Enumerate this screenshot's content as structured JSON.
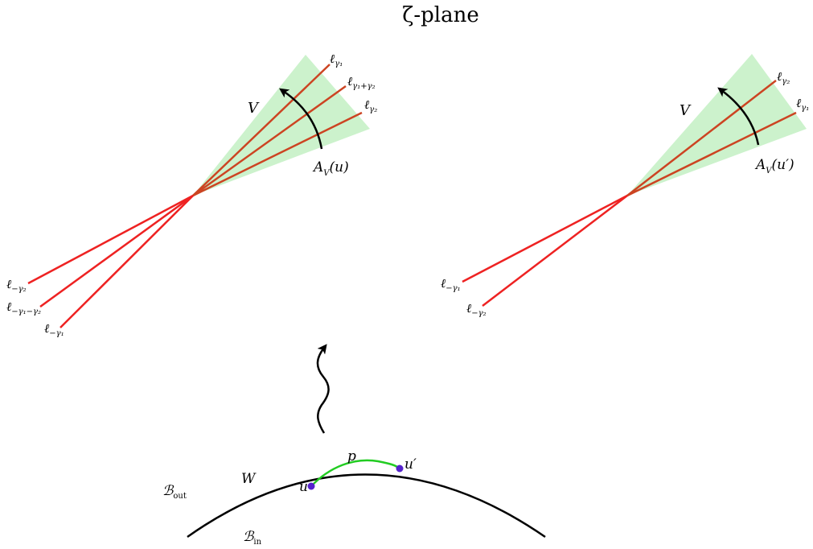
{
  "title": "ζ-plane",
  "left_panel": {
    "region_label": "V",
    "arc_label": "A",
    "arc_label_sub": "V",
    "arc_label_arg": "(u)",
    "rays": [
      {
        "label": "ℓ",
        "sub": "γ₁"
      },
      {
        "label": "ℓ",
        "sub": "γ₁+γ₂"
      },
      {
        "label": "ℓ",
        "sub": "γ₂"
      },
      {
        "label": "ℓ",
        "sub": "−γ₂"
      },
      {
        "label": "ℓ",
        "sub": "−γ₁−γ₂"
      },
      {
        "label": "ℓ",
        "sub": "−γ₁"
      }
    ]
  },
  "right_panel": {
    "region_label": "V",
    "arc_label": "A",
    "arc_label_sub": "V",
    "arc_label_arg": "(u′)",
    "rays": [
      {
        "label": "ℓ",
        "sub": "γ₂"
      },
      {
        "label": "ℓ",
        "sub": "γ₁"
      },
      {
        "label": "ℓ",
        "sub": "−γ₁"
      },
      {
        "label": "ℓ",
        "sub": "−γ₂"
      }
    ]
  },
  "bottom": {
    "path_label": "p",
    "region_W": "W",
    "point_u": "u",
    "point_u_prime": "u′",
    "b_out": "ℬ",
    "b_out_sub": "out",
    "b_in": "ℬ",
    "b_in_sub": "in"
  },
  "colors": {
    "wedge": "#ccf2cc",
    "ray_inner": "#cc4422",
    "ray_outer": "#ee2222",
    "path": "#22cc22",
    "point": "#5522cc",
    "ink": "#000000"
  }
}
